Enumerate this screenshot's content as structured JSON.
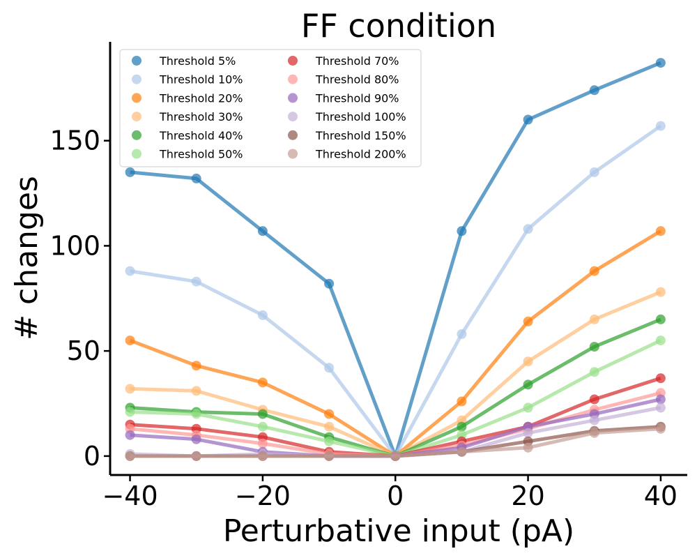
{
  "chart_data": {
    "type": "line",
    "title": "FF condition",
    "xlabel": "Perturbative input (pA)",
    "ylabel": "# changes",
    "xlim": [
      -43,
      44
    ],
    "ylim": [
      -9,
      197
    ],
    "xticks": [
      -40,
      -20,
      0,
      20,
      40
    ],
    "xtick_labels": [
      "−40",
      "−20",
      "0",
      "20",
      "40"
    ],
    "yticks": [
      0,
      50,
      100,
      150
    ],
    "ytick_labels": [
      "0",
      "50",
      "100",
      "150"
    ],
    "grid": false,
    "legend_position": "top-left",
    "legend_columns": 2,
    "x": [
      -40,
      -30,
      -20,
      -10,
      0,
      10,
      20,
      30,
      40
    ],
    "series": [
      {
        "name": "Threshold 5%",
        "color": "#1f77b4",
        "values": [
          135,
          132,
          107,
          82,
          0,
          107,
          160,
          174,
          187
        ]
      },
      {
        "name": "Threshold 10%",
        "color": "#aec7e8",
        "values": [
          88,
          83,
          67,
          42,
          0,
          58,
          108,
          135,
          157
        ]
      },
      {
        "name": "Threshold 20%",
        "color": "#ff7f0e",
        "values": [
          55,
          43,
          35,
          20,
          0,
          26,
          64,
          88,
          107
        ]
      },
      {
        "name": "Threshold 30%",
        "color": "#ffbb78",
        "values": [
          32,
          31,
          22,
          14,
          0,
          17,
          45,
          65,
          78
        ]
      },
      {
        "name": "Threshold 40%",
        "color": "#2ca02c",
        "values": [
          23,
          21,
          20,
          9,
          0,
          14,
          34,
          52,
          65
        ]
      },
      {
        "name": "Threshold 50%",
        "color": "#98df8a",
        "values": [
          21,
          20,
          14,
          7,
          0,
          10,
          23,
          40,
          55
        ]
      },
      {
        "name": "Threshold 70%",
        "color": "#d62728",
        "values": [
          15,
          13,
          9,
          2,
          0,
          7,
          14,
          27,
          37
        ]
      },
      {
        "name": "Threshold 80%",
        "color": "#ff9896",
        "values": [
          13,
          10,
          6,
          1,
          0,
          5,
          13,
          22,
          30
        ]
      },
      {
        "name": "Threshold 90%",
        "color": "#9467bd",
        "values": [
          10,
          8,
          2,
          0,
          0,
          4,
          14,
          20,
          27
        ]
      },
      {
        "name": "Threshold 100%",
        "color": "#c5b0d5",
        "values": [
          1,
          0,
          1,
          0,
          0,
          2,
          11,
          17,
          23
        ]
      },
      {
        "name": "Threshold 150%",
        "color": "#8c564b",
        "values": [
          0,
          0,
          0,
          0,
          0,
          2,
          7,
          12,
          14
        ]
      },
      {
        "name": "Threshold 200%",
        "color": "#c49c94",
        "values": [
          0,
          0,
          0,
          0,
          0,
          2,
          4,
          11,
          13
        ]
      }
    ]
  }
}
